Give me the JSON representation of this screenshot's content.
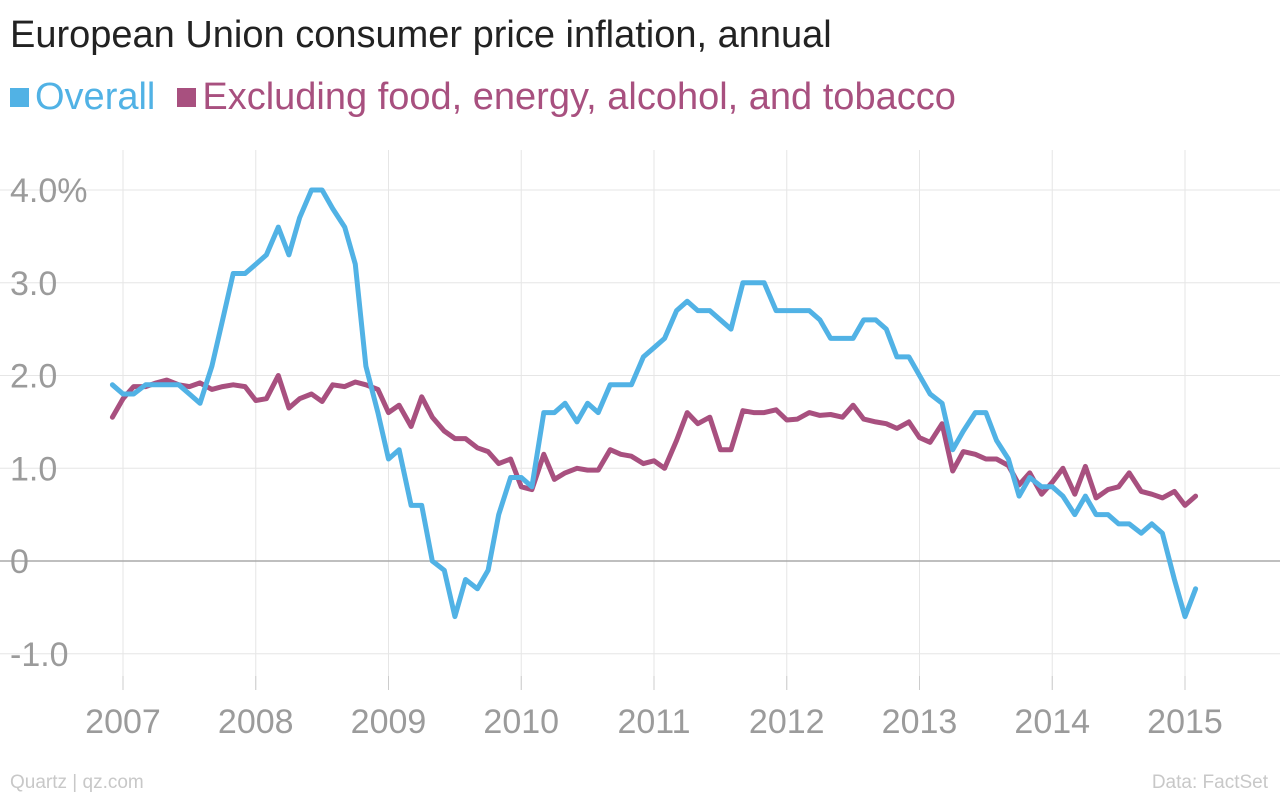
{
  "chart_data": {
    "type": "line",
    "title": "European Union consumer price inflation, annual",
    "xlabel": "",
    "ylabel": "",
    "xlim": [
      2006.85,
      2015.15
    ],
    "ylim": [
      -1.35,
      4.6
    ],
    "grid": true,
    "legend": "top-left",
    "x_ticks": [
      {
        "value": 2007,
        "label": "2007"
      },
      {
        "value": 2008,
        "label": "2008"
      },
      {
        "value": 2009,
        "label": "2009"
      },
      {
        "value": 2010,
        "label": "2010"
      },
      {
        "value": 2011,
        "label": "2011"
      },
      {
        "value": 2012,
        "label": "2012"
      },
      {
        "value": 2013,
        "label": "2013"
      },
      {
        "value": 2014,
        "label": "2014"
      },
      {
        "value": 2015,
        "label": "2015"
      }
    ],
    "y_ticks": [
      {
        "value": 4,
        "label": "4.0%"
      },
      {
        "value": 3,
        "label": "3.0"
      },
      {
        "value": 2,
        "label": "2.0"
      },
      {
        "value": 1,
        "label": "1.0"
      },
      {
        "value": 0,
        "label": "0"
      },
      {
        "value": -1,
        "label": "-1.0"
      }
    ],
    "series": [
      {
        "name": "Overall",
        "color": "#51b2e5",
        "points": [
          [
            2006.92,
            1.9
          ],
          [
            2007.0,
            1.8
          ],
          [
            2007.08,
            1.8
          ],
          [
            2007.17,
            1.9
          ],
          [
            2007.25,
            1.9
          ],
          [
            2007.33,
            1.9
          ],
          [
            2007.42,
            1.9
          ],
          [
            2007.5,
            1.8
          ],
          [
            2007.58,
            1.7
          ],
          [
            2007.67,
            2.1
          ],
          [
            2007.75,
            2.6
          ],
          [
            2007.83,
            3.1
          ],
          [
            2007.92,
            3.1
          ],
          [
            2008.0,
            3.2
          ],
          [
            2008.08,
            3.3
          ],
          [
            2008.17,
            3.6
          ],
          [
            2008.25,
            3.3
          ],
          [
            2008.33,
            3.7
          ],
          [
            2008.42,
            4.0
          ],
          [
            2008.5,
            4.0
          ],
          [
            2008.58,
            3.8
          ],
          [
            2008.67,
            3.6
          ],
          [
            2008.75,
            3.2
          ],
          [
            2008.83,
            2.1
          ],
          [
            2008.92,
            1.6
          ],
          [
            2009.0,
            1.1
          ],
          [
            2009.08,
            1.2
          ],
          [
            2009.17,
            0.6
          ],
          [
            2009.25,
            0.6
          ],
          [
            2009.33,
            0.0
          ],
          [
            2009.42,
            -0.1
          ],
          [
            2009.5,
            -0.6
          ],
          [
            2009.58,
            -0.2
          ],
          [
            2009.67,
            -0.3
          ],
          [
            2009.75,
            -0.1
          ],
          [
            2009.83,
            0.5
          ],
          [
            2009.92,
            0.9
          ],
          [
            2010.0,
            0.9
          ],
          [
            2010.08,
            0.8
          ],
          [
            2010.17,
            1.6
          ],
          [
            2010.25,
            1.6
          ],
          [
            2010.33,
            1.7
          ],
          [
            2010.42,
            1.5
          ],
          [
            2010.5,
            1.7
          ],
          [
            2010.58,
            1.6
          ],
          [
            2010.67,
            1.9
          ],
          [
            2010.75,
            1.9
          ],
          [
            2010.83,
            1.9
          ],
          [
            2010.92,
            2.2
          ],
          [
            2011.0,
            2.3
          ],
          [
            2011.08,
            2.4
          ],
          [
            2011.17,
            2.7
          ],
          [
            2011.25,
            2.8
          ],
          [
            2011.33,
            2.7
          ],
          [
            2011.42,
            2.7
          ],
          [
            2011.5,
            2.6
          ],
          [
            2011.58,
            2.5
          ],
          [
            2011.67,
            3.0
          ],
          [
            2011.75,
            3.0
          ],
          [
            2011.83,
            3.0
          ],
          [
            2011.92,
            2.7
          ],
          [
            2012.0,
            2.7
          ],
          [
            2012.08,
            2.7
          ],
          [
            2012.17,
            2.7
          ],
          [
            2012.25,
            2.6
          ],
          [
            2012.33,
            2.4
          ],
          [
            2012.42,
            2.4
          ],
          [
            2012.5,
            2.4
          ],
          [
            2012.58,
            2.6
          ],
          [
            2012.67,
            2.6
          ],
          [
            2012.75,
            2.5
          ],
          [
            2012.83,
            2.2
          ],
          [
            2012.92,
            2.2
          ],
          [
            2013.0,
            2.0
          ],
          [
            2013.08,
            1.8
          ],
          [
            2013.17,
            1.7
          ],
          [
            2013.25,
            1.2
          ],
          [
            2013.33,
            1.4
          ],
          [
            2013.42,
            1.6
          ],
          [
            2013.5,
            1.6
          ],
          [
            2013.58,
            1.3
          ],
          [
            2013.67,
            1.1
          ],
          [
            2013.75,
            0.7
          ],
          [
            2013.83,
            0.9
          ],
          [
            2013.92,
            0.8
          ],
          [
            2014.0,
            0.8
          ],
          [
            2014.08,
            0.7
          ],
          [
            2014.17,
            0.5
          ],
          [
            2014.25,
            0.7
          ],
          [
            2014.33,
            0.5
          ],
          [
            2014.42,
            0.5
          ],
          [
            2014.5,
            0.4
          ],
          [
            2014.58,
            0.4
          ],
          [
            2014.67,
            0.3
          ],
          [
            2014.75,
            0.4
          ],
          [
            2014.83,
            0.3
          ],
          [
            2014.92,
            -0.2
          ],
          [
            2015.0,
            -0.6
          ],
          [
            2015.08,
            -0.3
          ]
        ]
      },
      {
        "name": "Excluding food, energy, alcohol, and tobacco",
        "color": "#a8507f",
        "points": [
          [
            2006.92,
            1.55
          ],
          [
            2007.0,
            1.75
          ],
          [
            2007.08,
            1.88
          ],
          [
            2007.17,
            1.88
          ],
          [
            2007.25,
            1.92
          ],
          [
            2007.33,
            1.95
          ],
          [
            2007.42,
            1.9
          ],
          [
            2007.5,
            1.88
          ],
          [
            2007.58,
            1.92
          ],
          [
            2007.67,
            1.85
          ],
          [
            2007.75,
            1.88
          ],
          [
            2007.83,
            1.9
          ],
          [
            2007.92,
            1.88
          ],
          [
            2008.0,
            1.73
          ],
          [
            2008.08,
            1.75
          ],
          [
            2008.17,
            2.0
          ],
          [
            2008.25,
            1.65
          ],
          [
            2008.33,
            1.75
          ],
          [
            2008.42,
            1.8
          ],
          [
            2008.5,
            1.72
          ],
          [
            2008.58,
            1.9
          ],
          [
            2008.67,
            1.88
          ],
          [
            2008.75,
            1.93
          ],
          [
            2008.83,
            1.9
          ],
          [
            2008.92,
            1.85
          ],
          [
            2009.0,
            1.6
          ],
          [
            2009.08,
            1.68
          ],
          [
            2009.17,
            1.45
          ],
          [
            2009.25,
            1.77
          ],
          [
            2009.33,
            1.55
          ],
          [
            2009.42,
            1.4
          ],
          [
            2009.5,
            1.32
          ],
          [
            2009.58,
            1.32
          ],
          [
            2009.67,
            1.22
          ],
          [
            2009.75,
            1.18
          ],
          [
            2009.83,
            1.05
          ],
          [
            2009.92,
            1.1
          ],
          [
            2010.0,
            0.8
          ],
          [
            2010.08,
            0.77
          ],
          [
            2010.17,
            1.15
          ],
          [
            2010.25,
            0.88
          ],
          [
            2010.33,
            0.95
          ],
          [
            2010.42,
            1.0
          ],
          [
            2010.5,
            0.98
          ],
          [
            2010.58,
            0.98
          ],
          [
            2010.67,
            1.2
          ],
          [
            2010.75,
            1.15
          ],
          [
            2010.83,
            1.13
          ],
          [
            2010.92,
            1.05
          ],
          [
            2011.0,
            1.08
          ],
          [
            2011.08,
            1.0
          ],
          [
            2011.17,
            1.3
          ],
          [
            2011.25,
            1.6
          ],
          [
            2011.33,
            1.48
          ],
          [
            2011.42,
            1.55
          ],
          [
            2011.5,
            1.2
          ],
          [
            2011.58,
            1.2
          ],
          [
            2011.67,
            1.62
          ],
          [
            2011.75,
            1.6
          ],
          [
            2011.83,
            1.6
          ],
          [
            2011.92,
            1.63
          ],
          [
            2012.0,
            1.52
          ],
          [
            2012.08,
            1.53
          ],
          [
            2012.17,
            1.6
          ],
          [
            2012.25,
            1.57
          ],
          [
            2012.33,
            1.58
          ],
          [
            2012.42,
            1.55
          ],
          [
            2012.5,
            1.68
          ],
          [
            2012.58,
            1.53
          ],
          [
            2012.67,
            1.5
          ],
          [
            2012.75,
            1.48
          ],
          [
            2012.83,
            1.43
          ],
          [
            2012.92,
            1.5
          ],
          [
            2013.0,
            1.33
          ],
          [
            2013.08,
            1.28
          ],
          [
            2013.17,
            1.48
          ],
          [
            2013.25,
            0.97
          ],
          [
            2013.33,
            1.18
          ],
          [
            2013.42,
            1.15
          ],
          [
            2013.5,
            1.1
          ],
          [
            2013.58,
            1.1
          ],
          [
            2013.67,
            1.03
          ],
          [
            2013.75,
            0.82
          ],
          [
            2013.83,
            0.95
          ],
          [
            2013.92,
            0.72
          ],
          [
            2014.0,
            0.85
          ],
          [
            2014.08,
            1.0
          ],
          [
            2014.17,
            0.72
          ],
          [
            2014.25,
            1.02
          ],
          [
            2014.33,
            0.68
          ],
          [
            2014.42,
            0.77
          ],
          [
            2014.5,
            0.8
          ],
          [
            2014.58,
            0.95
          ],
          [
            2014.67,
            0.75
          ],
          [
            2014.75,
            0.72
          ],
          [
            2014.83,
            0.68
          ],
          [
            2014.92,
            0.75
          ],
          [
            2015.0,
            0.6
          ],
          [
            2015.08,
            0.7
          ]
        ]
      }
    ]
  },
  "footer": {
    "source_left": "Quartz | qz.com",
    "source_right": "Data: FactSet"
  },
  "colors": {
    "grid": "#e6e6e6",
    "zero_line": "#aaaaaa",
    "tick_label": "#9b9b9b"
  }
}
